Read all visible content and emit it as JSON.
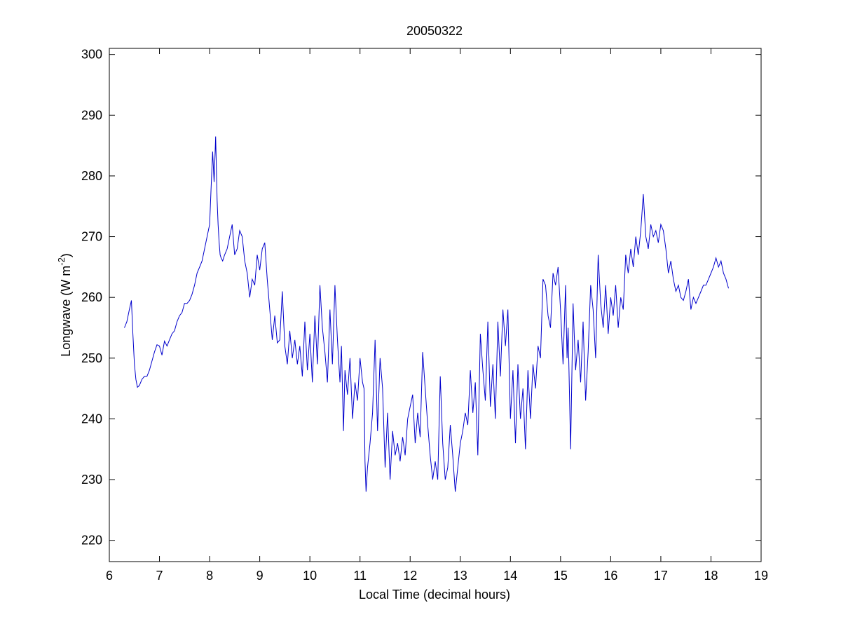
{
  "chart_data": {
    "type": "line",
    "title": "20050322",
    "xlabel": "Local Time (decimal hours)",
    "ylabel": {
      "main": "Longwave (W m",
      "superscript": "-2",
      "suffix": ")"
    },
    "xlim": [
      6,
      19
    ],
    "ylim": [
      216.5,
      301
    ],
    "x_ticks": [
      "6",
      "7",
      "8",
      "9",
      "10",
      "11",
      "12",
      "13",
      "14",
      "15",
      "16",
      "17",
      "18",
      "19"
    ],
    "y_ticks": [
      "220",
      "230",
      "240",
      "250",
      "260",
      "270",
      "280",
      "290",
      "300"
    ],
    "grid": false,
    "line_color": "#0000cc",
    "series": [
      {
        "x": [
          6.3,
          6.35,
          6.4,
          6.44,
          6.47,
          6.5,
          6.53,
          6.56,
          6.6,
          6.65,
          6.7,
          6.75,
          6.8,
          6.85,
          6.9,
          6.95,
          7.0,
          7.05,
          7.1,
          7.15,
          7.2,
          7.25,
          7.3,
          7.35,
          7.4,
          7.45,
          7.5,
          7.55,
          7.6,
          7.65,
          7.7,
          7.75,
          7.8,
          7.85,
          7.9,
          7.95,
          8.0,
          8.03,
          8.06,
          8.09,
          8.12,
          8.15,
          8.17,
          8.19,
          8.21,
          8.23,
          8.26,
          8.3,
          8.35,
          8.4,
          8.45,
          8.5,
          8.55,
          8.6,
          8.65,
          8.7,
          8.75,
          8.8,
          8.85,
          8.9,
          8.95,
          9.0,
          9.05,
          9.1,
          9.15,
          9.2,
          9.25,
          9.3,
          9.35,
          9.4,
          9.45,
          9.5,
          9.55,
          9.6,
          9.65,
          9.7,
          9.75,
          9.8,
          9.85,
          9.9,
          9.95,
          10.0,
          10.05,
          10.1,
          10.15,
          10.2,
          10.25,
          10.3,
          10.35,
          10.4,
          10.45,
          10.5,
          10.55,
          10.6,
          10.63,
          10.67,
          10.7,
          10.75,
          10.8,
          10.85,
          10.9,
          10.95,
          11.0,
          11.05,
          11.08,
          11.1,
          11.12,
          11.15,
          11.2,
          11.25,
          11.3,
          11.35,
          11.4,
          11.45,
          11.5,
          11.55,
          11.6,
          11.65,
          11.7,
          11.75,
          11.8,
          11.85,
          11.9,
          11.95,
          12.0,
          12.05,
          12.1,
          12.15,
          12.2,
          12.25,
          12.3,
          12.35,
          12.4,
          12.45,
          12.5,
          12.55,
          12.6,
          12.65,
          12.7,
          12.75,
          12.78,
          12.8,
          12.85,
          12.9,
          12.95,
          13.0,
          13.05,
          13.1,
          13.15,
          13.2,
          13.25,
          13.3,
          13.35,
          13.4,
          13.45,
          13.5,
          13.55,
          13.6,
          13.65,
          13.7,
          13.75,
          13.8,
          13.85,
          13.9,
          13.95,
          14.0,
          14.05,
          14.1,
          14.15,
          14.2,
          14.25,
          14.3,
          14.35,
          14.4,
          14.45,
          14.5,
          14.55,
          14.6,
          14.65,
          14.7,
          14.75,
          14.8,
          14.85,
          14.9,
          14.95,
          15.0,
          15.05,
          15.1,
          15.13,
          15.15,
          15.2,
          15.25,
          15.3,
          15.35,
          15.4,
          15.45,
          15.5,
          15.55,
          15.6,
          15.65,
          15.7,
          15.75,
          15.8,
          15.85,
          15.9,
          15.95,
          16.0,
          16.05,
          16.1,
          16.15,
          16.2,
          16.25,
          16.3,
          16.35,
          16.4,
          16.45,
          16.5,
          16.55,
          16.6,
          16.65,
          16.7,
          16.75,
          16.8,
          16.85,
          16.9,
          16.95,
          17.0,
          17.05,
          17.1,
          17.15,
          17.2,
          17.25,
          17.3,
          17.35,
          17.4,
          17.45,
          17.5,
          17.55,
          17.6,
          17.65,
          17.7,
          17.75,
          17.8,
          17.85,
          17.9,
          17.95,
          18.0,
          18.05,
          18.1,
          18.15,
          18.2,
          18.25,
          18.3,
          18.35
        ],
        "y": [
          255,
          256,
          258,
          259.5,
          254,
          249,
          246.5,
          245.2,
          245.5,
          246.5,
          247,
          247,
          248,
          249.5,
          251,
          252.2,
          252,
          250.5,
          252.8,
          252,
          253,
          254,
          254.5,
          256,
          257,
          257.5,
          259,
          259,
          259.5,
          260.5,
          262,
          264,
          265,
          266,
          268,
          270,
          272,
          278,
          284,
          279,
          286.5,
          276,
          272,
          269,
          267,
          266.5,
          266,
          267,
          268,
          270,
          272,
          267,
          268,
          271,
          270,
          266,
          264,
          260,
          263,
          262,
          267,
          264.5,
          268,
          269,
          263,
          258,
          253,
          257,
          252.5,
          253,
          261,
          252,
          249,
          254.5,
          250,
          253,
          249,
          252,
          247,
          256,
          248,
          254,
          246,
          257,
          249,
          262,
          255,
          251,
          246,
          258,
          249,
          262,
          253,
          246,
          252,
          238,
          248,
          244,
          250,
          240,
          246,
          243,
          250,
          246,
          245,
          233,
          228,
          232,
          236,
          241,
          253,
          238,
          250,
          245,
          232,
          241,
          230,
          238,
          234,
          236,
          233,
          237,
          234,
          240,
          242,
          244,
          236,
          241,
          237,
          251,
          245,
          239,
          234,
          230,
          233,
          230,
          247,
          236,
          230,
          232,
          236,
          239,
          234,
          228,
          232,
          236,
          238,
          241,
          239,
          248,
          241,
          246,
          234,
          254,
          248,
          243,
          256,
          242,
          249,
          240,
          256,
          247,
          258,
          252,
          258,
          240,
          248,
          236,
          249,
          240,
          245,
          235,
          248,
          240,
          249,
          245,
          252,
          250,
          263,
          262,
          257,
          255,
          264,
          262,
          265,
          258,
          249,
          262,
          250,
          255,
          235,
          259,
          248,
          253,
          246,
          256,
          243,
          251,
          262,
          258,
          250,
          267,
          259,
          255,
          262,
          254,
          260,
          257,
          262,
          255,
          260,
          258,
          267,
          264,
          268,
          265,
          270,
          267,
          271,
          277,
          270,
          268,
          272,
          270,
          271,
          269,
          272,
          271,
          268,
          264,
          266,
          263,
          261,
          262,
          260,
          259.5,
          261,
          263,
          258,
          260,
          259,
          260,
          261,
          262,
          262,
          263,
          264,
          265,
          266.5,
          265,
          266,
          264,
          263,
          261.5
        ]
      }
    ]
  }
}
